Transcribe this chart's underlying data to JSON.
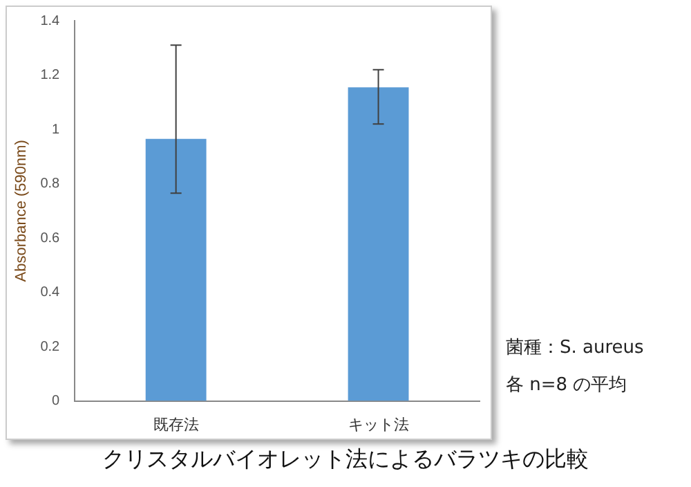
{
  "chart_data": {
    "type": "bar",
    "title": "クリスタルバイオレット法によるバラツキの比較",
    "ylabel": "Absorbance (590nm)",
    "categories": [
      "既存法",
      "キット法"
    ],
    "values": [
      0.965,
      1.155
    ],
    "errors": [
      [
        0.765,
        1.31
      ],
      [
        1.02,
        1.22
      ]
    ],
    "color": "#5b9bd5",
    "ylim": [
      0,
      1.4
    ],
    "yticks": [
      0,
      0.2,
      0.4,
      0.6,
      0.8,
      1,
      1.2,
      1.4
    ],
    "annotations": [
      "菌種：S. aureus",
      "各 n=8 の平均"
    ]
  }
}
